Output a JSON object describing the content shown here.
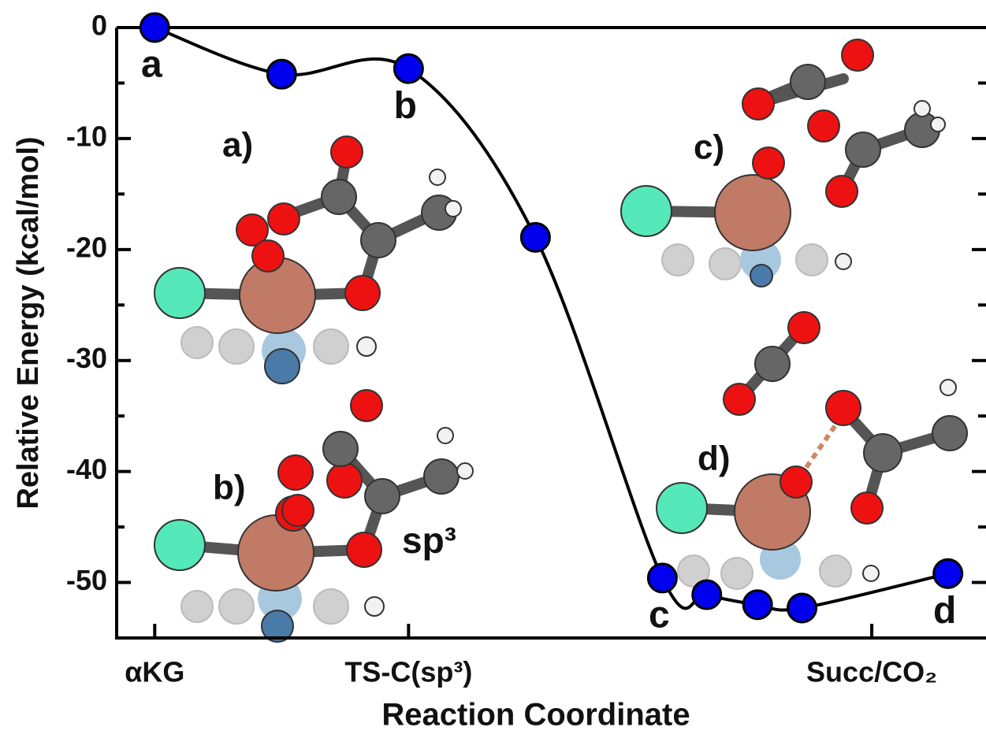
{
  "chart_data": {
    "type": "line",
    "x_label": "Reaction Coordinate",
    "y_label": "Relative Energy (kcal/mol)",
    "x": [
      0,
      1,
      2,
      3,
      4,
      4.35,
      4.75,
      5.1,
      6.25
    ],
    "series": [
      {
        "color": "#0000ee",
        "values": [
          0,
          -4.2,
          -3.7,
          -18.9,
          -49.6,
          -51.1,
          -52.0,
          -52.3,
          -49.2
        ]
      }
    ],
    "point_labels": [
      "a",
      null,
      "b",
      null,
      "c",
      null,
      null,
      null,
      "d"
    ],
    "xlim": [
      -0.3,
      6.55
    ],
    "xticks": [
      {
        "value": 0,
        "label": "αKG"
      },
      {
        "value": 2,
        "label": "TS-C(sp³)"
      },
      {
        "value": 5.65,
        "label": "Succ/CO₂"
      }
    ],
    "ylim": [
      -55,
      0
    ],
    "yticks": [
      0,
      -10,
      -20,
      -30,
      -40,
      -50
    ],
    "yminor_ticks": [
      -5,
      -15,
      -25,
      -35,
      -45
    ],
    "insets": [
      {
        "label": "a)"
      },
      {
        "label": "b)",
        "note": "sp³"
      },
      {
        "label": "c)"
      },
      {
        "label": "d)"
      }
    ]
  }
}
